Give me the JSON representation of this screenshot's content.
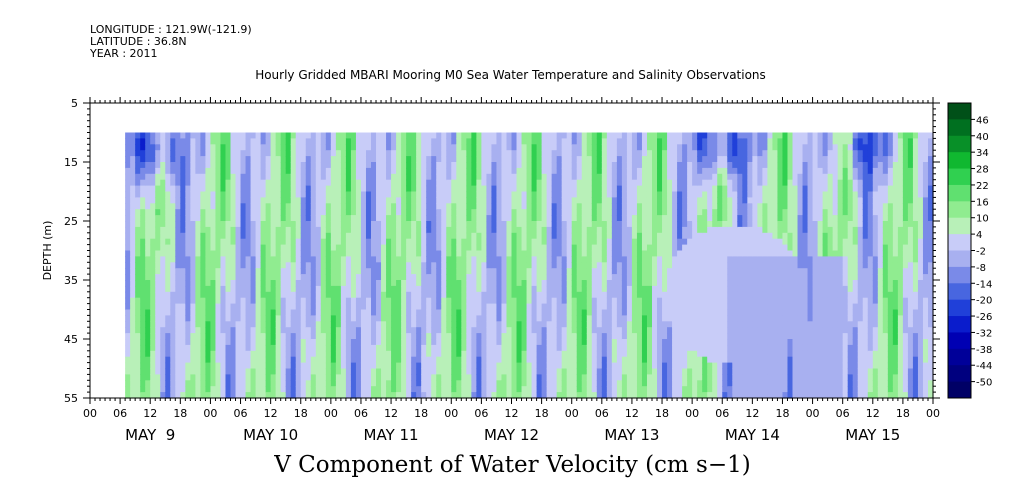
{
  "meta": {
    "longitude": "LONGITUDE : 121.9W(-121.9)",
    "latitude": "LATITUDE : 36.8N",
    "year": "YEAR : 2011"
  },
  "chart_data": {
    "type": "heatmap",
    "title": "Hourly Gridded MBARI Mooring M0 Sea Water Temperature and Salinity Observations",
    "xlabel": "",
    "bottom_label": "V Component of Water Velocity (cm s−1)",
    "ylabel": "DEPTH (m)",
    "ylim": [
      55,
      5
    ],
    "y_ticks": [
      5,
      15,
      25,
      35,
      45,
      55
    ],
    "data_depth_range": [
      10,
      55
    ],
    "x_hour_ticks": [
      "00",
      "06",
      "12",
      "18",
      "00",
      "06",
      "12",
      "18",
      "00",
      "06",
      "12",
      "18",
      "00",
      "06",
      "12",
      "18",
      "00",
      "06",
      "12",
      "18",
      "00",
      "06",
      "12",
      "18",
      "00",
      "06",
      "12",
      "18",
      "00"
    ],
    "x_day_labels": [
      "MAY  9",
      "MAY 10",
      "MAY 11",
      "MAY 12",
      "MAY 13",
      "MAY 14",
      "MAY 15"
    ],
    "data_start_hour": 7,
    "data_end_hour": 168,
    "colorbar": {
      "levels": [
        -50,
        -44,
        -38,
        -32,
        -26,
        -20,
        -14,
        -8,
        -2,
        4,
        10,
        16,
        22,
        28,
        34,
        40,
        46
      ],
      "labels": [
        "46",
        "40",
        "34",
        "28",
        "22",
        "16",
        "10",
        "4",
        "-2",
        "-8",
        "-14",
        "-20",
        "-26",
        "-32",
        "-38",
        "-44",
        "-50"
      ],
      "colors": [
        "#000066",
        "#00007f",
        "#000099",
        "#0000b3",
        "#0a1ccc",
        "#2040d9",
        "#4866e0",
        "#7a8ae8",
        "#a8b0f0",
        "#c8ccf8",
        "#b8f0b8",
        "#90ec90",
        "#60e070",
        "#30d050",
        "#10b830",
        "#089028",
        "#007020",
        "#005018"
      ]
    },
    "features": [
      {
        "desc": "strong negative core",
        "hour": 13,
        "depth": 13,
        "value": -24
      },
      {
        "desc": "strong negative core",
        "hour": 154,
        "depth": 12,
        "value": -18
      },
      {
        "desc": "strong negative surface jet",
        "hour": 126,
        "depth": 12,
        "value": -26
      },
      {
        "desc": "weak positive plateau",
        "hour": 122,
        "depth": 36,
        "value": 1
      }
    ]
  }
}
